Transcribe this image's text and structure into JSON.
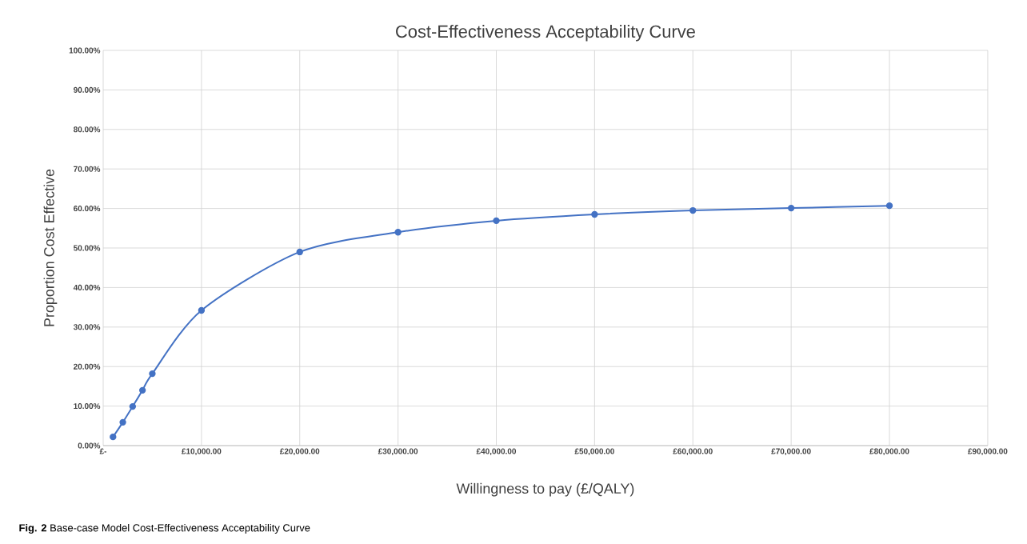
{
  "chart_data": {
    "type": "line",
    "title": "Cost-Effectiveness Acceptability Curve",
    "xlabel": "Willingness to pay (£/QALY)",
    "ylabel": "Proportion Cost Effective",
    "annotations": [
      "**Fig. 2** Base-case Model Cost-Effectiveness Acceptability Curve"
    ],
    "x": [
      1000,
      2000,
      3000,
      4000,
      5000,
      10000,
      20000,
      30000,
      40000,
      50000,
      60000,
      70000,
      80000
    ],
    "series": [
      {
        "color": "#4472c4",
        "values": [
          2.2,
          5.9,
          9.9,
          14.0,
          18.2,
          34.2,
          49.0,
          54.0,
          56.9,
          58.5,
          59.5,
          60.1,
          60.7
        ]
      }
    ],
    "xlim": [
      0,
      90000
    ],
    "ylim": [
      0,
      100
    ],
    "xticks": [
      {
        "value": 0,
        "label": "£-"
      },
      {
        "value": 10000,
        "label": "£10,000.00"
      },
      {
        "value": 20000,
        "label": "£20,000.00"
      },
      {
        "value": 30000,
        "label": "£30,000.00"
      },
      {
        "value": 40000,
        "label": "£40,000.00"
      },
      {
        "value": 50000,
        "label": "£50,000.00"
      },
      {
        "value": 60000,
        "label": "£60,000.00"
      },
      {
        "value": 70000,
        "label": "£70,000.00"
      },
      {
        "value": 80000,
        "label": "£80,000.00"
      },
      {
        "value": 90000,
        "label": "£90,000.00"
      }
    ],
    "yticks": [
      {
        "value": 0,
        "label": "0.00%"
      },
      {
        "value": 10,
        "label": "10.00%"
      },
      {
        "value": 20,
        "label": "20.00%"
      },
      {
        "value": 30,
        "label": "30.00%"
      },
      {
        "value": 40,
        "label": "40.00%"
      },
      {
        "value": 50,
        "label": "50.00%"
      },
      {
        "value": 60,
        "label": "60.00%"
      },
      {
        "value": 70,
        "label": "70.00%"
      },
      {
        "value": 80,
        "label": "80.00%"
      },
      {
        "value": 90,
        "label": "90.00%"
      },
      {
        "value": 100,
        "label": "100.00%"
      }
    ],
    "grid": true,
    "marker": "circle",
    "line_style": "solid"
  }
}
